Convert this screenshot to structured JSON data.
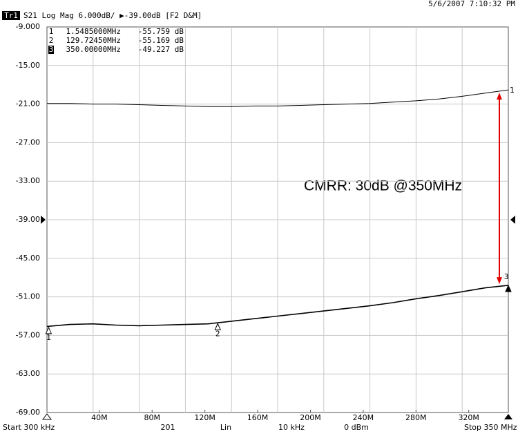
{
  "chart_data": {
    "type": "line",
    "timestamp": "5/6/2007 7:10:32 PM",
    "trace_id": "Tr1",
    "header": "S21 Log Mag 6.000dB/ ▶-39.00dB [F2 D&M]",
    "annotation": "CMRR: 30dB @350MHz",
    "reference_level": -39,
    "xlim": [
      0.3,
      350
    ],
    "ylim": [
      -69,
      -9
    ],
    "xticks": [
      {
        "value": 40,
        "label": "40M"
      },
      {
        "value": 80,
        "label": "80M"
      },
      {
        "value": 120,
        "label": "120M"
      },
      {
        "value": 160,
        "label": "160M"
      },
      {
        "value": 200,
        "label": "200M"
      },
      {
        "value": 240,
        "label": "240M"
      },
      {
        "value": 280,
        "label": "280M"
      },
      {
        "value": 320,
        "label": "320M"
      }
    ],
    "yticks": [
      {
        "value": -9,
        "label": "-9.000"
      },
      {
        "value": -15,
        "label": "-15.00"
      },
      {
        "value": -21,
        "label": "-21.00"
      },
      {
        "value": -27,
        "label": "-27.00"
      },
      {
        "value": -33,
        "label": "-33.00"
      },
      {
        "value": -39,
        "label": "-39.00"
      },
      {
        "value": -45,
        "label": "-45.00"
      },
      {
        "value": -51,
        "label": "-51.00"
      },
      {
        "value": -57,
        "label": "-57.00"
      },
      {
        "value": -63,
        "label": "-63.00"
      },
      {
        "value": -69,
        "label": "-69.00"
      }
    ],
    "grid": true,
    "x": [
      0.3,
      17.5,
      35,
      52.5,
      70,
      87.5,
      105,
      122.5,
      140,
      157.5,
      175,
      192.5,
      210,
      227.5,
      245,
      262.5,
      280,
      297.5,
      315,
      332.5,
      350
    ],
    "series": [
      {
        "color": "#000000",
        "end_label": "1",
        "values": [
          -20.9,
          -20.9,
          -21.0,
          -21.0,
          -21.1,
          -21.2,
          -21.3,
          -21.4,
          -21.4,
          -21.3,
          -21.3,
          -21.2,
          -21.1,
          -21.0,
          -20.9,
          -20.7,
          -20.5,
          -20.2,
          -19.8,
          -19.3,
          -18.8
        ]
      },
      {
        "color": "#000000",
        "values": [
          -55.6,
          -55.3,
          -55.2,
          -55.4,
          -55.5,
          -55.4,
          -55.3,
          -55.2,
          -54.8,
          -54.4,
          -54.0,
          -53.6,
          -53.2,
          -52.8,
          -52.4,
          -51.9,
          -51.3,
          -50.8,
          -50.2,
          -49.6,
          -49.2
        ]
      }
    ],
    "markers": [
      {
        "label": "1",
        "x": 1.5485,
        "x_label": "1.5485000MHz",
        "y": -55.759,
        "y_label": "-55.759 dB",
        "active": false
      },
      {
        "label": "2",
        "x": 129.7245,
        "x_label": "129.72450MHz",
        "y": -55.169,
        "y_label": "-55.169 dB",
        "active": false
      },
      {
        "label": "3",
        "x": 350,
        "x_label": "350.00000MHz",
        "y": -49.227,
        "y_label": "-49.227 dB",
        "active": true
      }
    ],
    "status": [
      "Start 300 kHz",
      "201",
      "Lin",
      "10 kHz",
      "0 dBm",
      "Stop 350 MHz"
    ],
    "arrow_color": "#e00000"
  }
}
